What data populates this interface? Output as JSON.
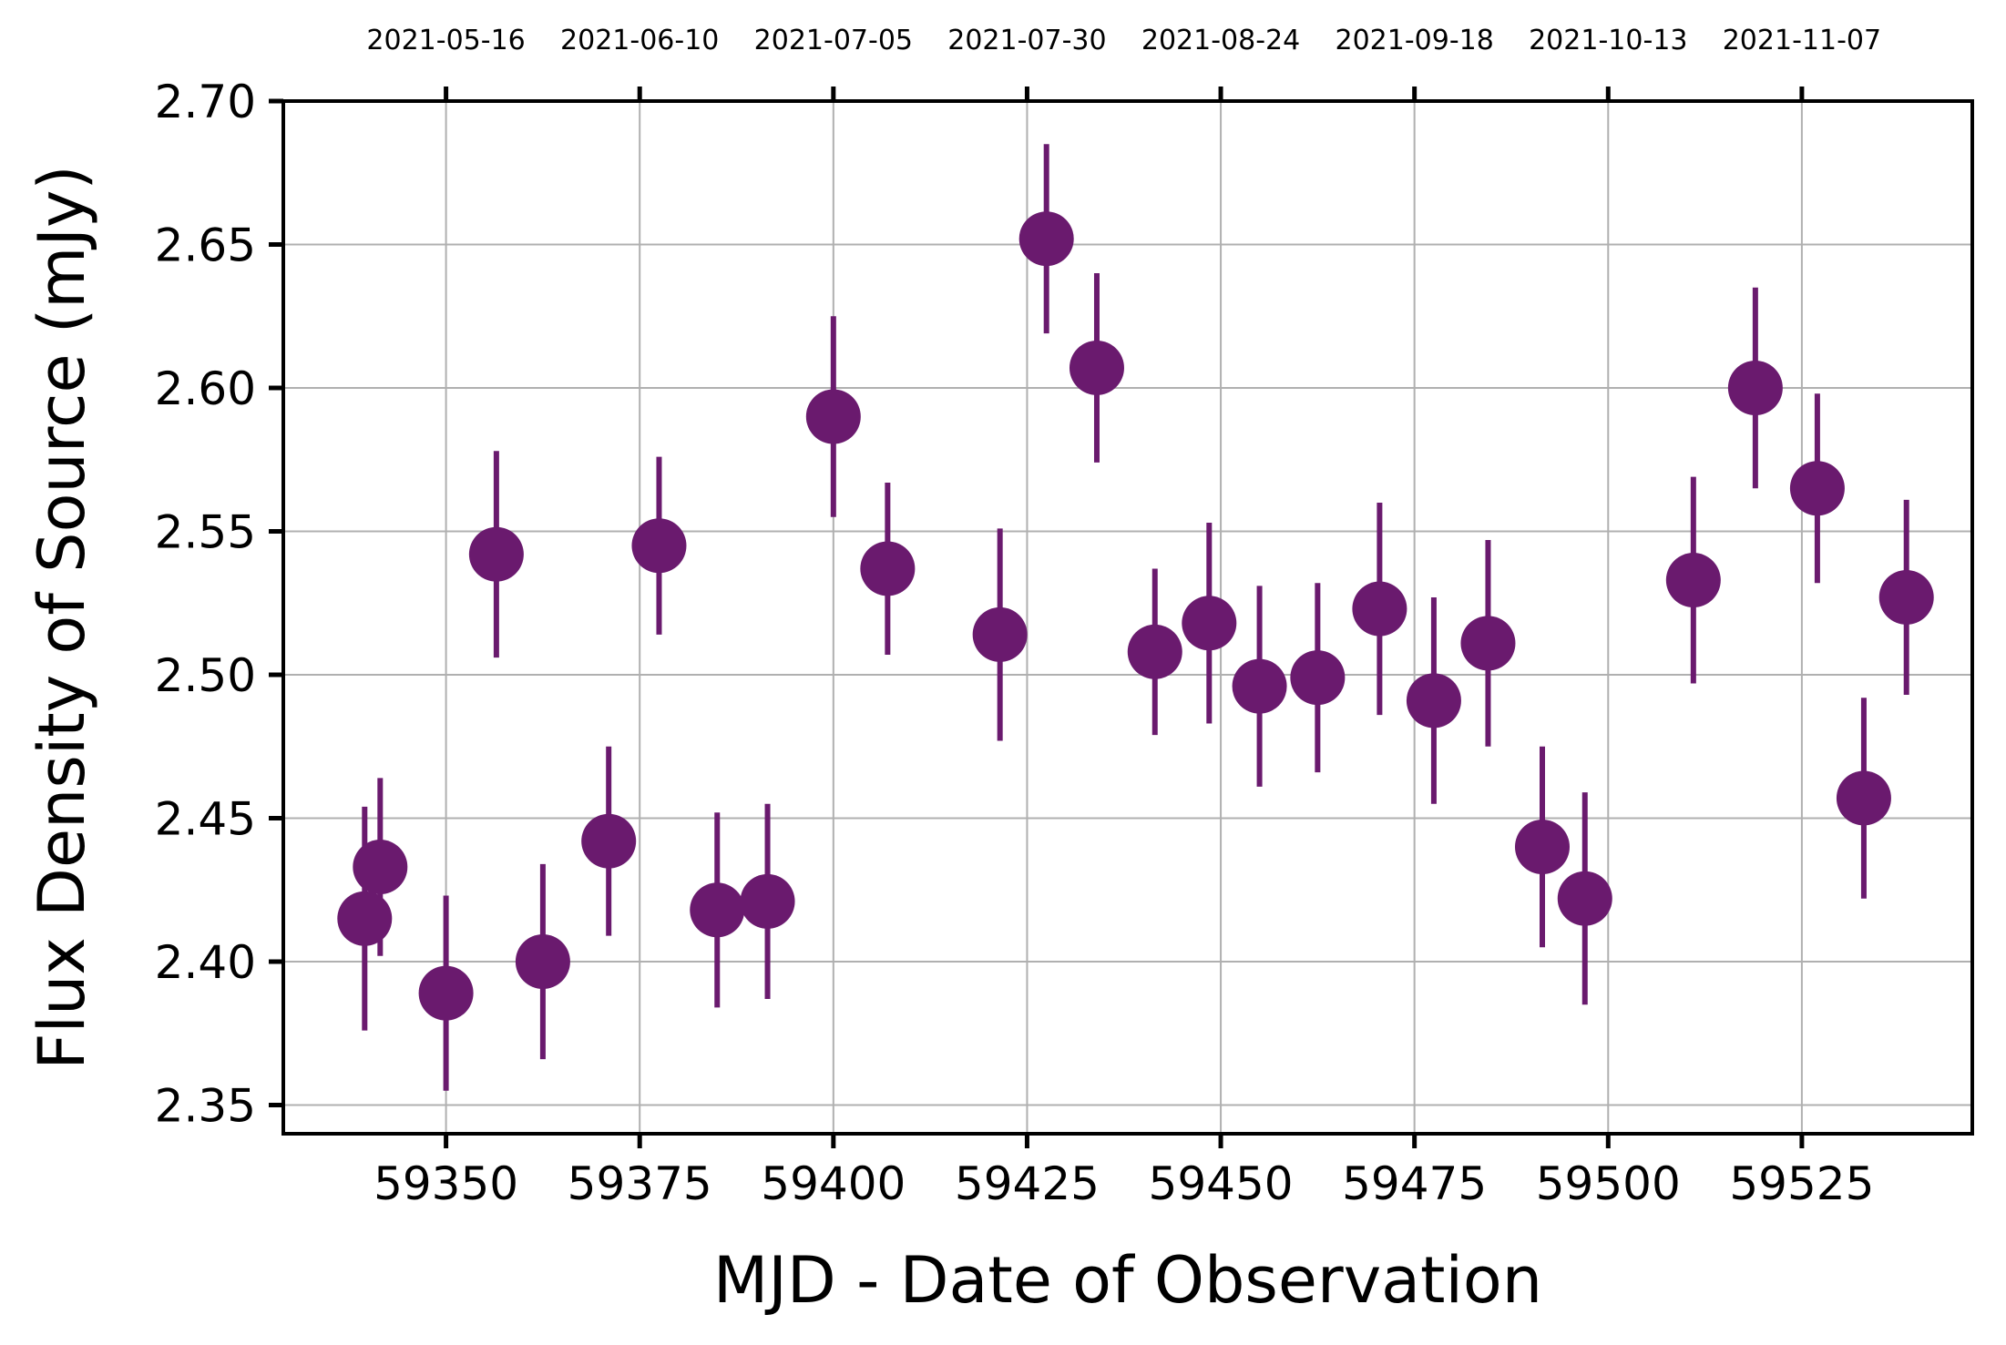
{
  "chart_data": {
    "type": "scatter",
    "xlabel": "MJD - Date of Observation",
    "ylabel": "Flux Density of Source (mJy)",
    "xlim": [
      59329,
      59547
    ],
    "ylim": [
      2.34,
      2.7
    ],
    "x_ticks": [
      59350,
      59375,
      59400,
      59425,
      59450,
      59475,
      59500,
      59525
    ],
    "x_tick_labels": [
      "59350",
      "59375",
      "59400",
      "59425",
      "59450",
      "59475",
      "59500",
      "59525"
    ],
    "top_x_ticks": [
      59350,
      59375,
      59400,
      59425,
      59450,
      59475,
      59500,
      59525
    ],
    "top_x_tick_labels": [
      "2021-05-16",
      "2021-06-10",
      "2021-07-05",
      "2021-07-30",
      "2021-08-24",
      "2021-09-18",
      "2021-10-13",
      "2021-11-07"
    ],
    "y_ticks": [
      2.35,
      2.4,
      2.45,
      2.5,
      2.55,
      2.6,
      2.65,
      2.7
    ],
    "y_tick_labels": [
      "2.35",
      "2.40",
      "2.45",
      "2.50",
      "2.55",
      "2.60",
      "2.65",
      "2.70"
    ],
    "grid": true,
    "color": "#6a1a6e",
    "points": [
      {
        "x": 59339.5,
        "y": 2.415,
        "err": 0.039
      },
      {
        "x": 59341.5,
        "y": 2.433,
        "err": 0.031
      },
      {
        "x": 59350.0,
        "y": 2.389,
        "err": 0.034
      },
      {
        "x": 59356.5,
        "y": 2.542,
        "err": 0.036
      },
      {
        "x": 59362.5,
        "y": 2.4,
        "err": 0.034
      },
      {
        "x": 59371.0,
        "y": 2.442,
        "err": 0.033
      },
      {
        "x": 59377.5,
        "y": 2.545,
        "err": 0.031
      },
      {
        "x": 59385.0,
        "y": 2.418,
        "err": 0.034
      },
      {
        "x": 59391.5,
        "y": 2.421,
        "err": 0.034
      },
      {
        "x": 59400.0,
        "y": 2.59,
        "err": 0.035
      },
      {
        "x": 59407.0,
        "y": 2.537,
        "err": 0.03
      },
      {
        "x": 59421.5,
        "y": 2.514,
        "err": 0.037
      },
      {
        "x": 59427.5,
        "y": 2.652,
        "err": 0.033
      },
      {
        "x": 59434.0,
        "y": 2.607,
        "err": 0.033
      },
      {
        "x": 59441.5,
        "y": 2.508,
        "err": 0.029
      },
      {
        "x": 59448.5,
        "y": 2.518,
        "err": 0.035
      },
      {
        "x": 59455.0,
        "y": 2.496,
        "err": 0.035
      },
      {
        "x": 59462.5,
        "y": 2.499,
        "err": 0.033
      },
      {
        "x": 59470.5,
        "y": 2.523,
        "err": 0.037
      },
      {
        "x": 59477.5,
        "y": 2.491,
        "err": 0.036
      },
      {
        "x": 59484.5,
        "y": 2.511,
        "err": 0.036
      },
      {
        "x": 59491.5,
        "y": 2.44,
        "err": 0.035
      },
      {
        "x": 59497.0,
        "y": 2.422,
        "err": 0.037
      },
      {
        "x": 59511.0,
        "y": 2.533,
        "err": 0.036
      },
      {
        "x": 59519.0,
        "y": 2.6,
        "err": 0.035
      },
      {
        "x": 59527.0,
        "y": 2.565,
        "err": 0.033
      },
      {
        "x": 59533.0,
        "y": 2.457,
        "err": 0.035
      },
      {
        "x": 59538.5,
        "y": 2.527,
        "err": 0.034
      }
    ]
  }
}
